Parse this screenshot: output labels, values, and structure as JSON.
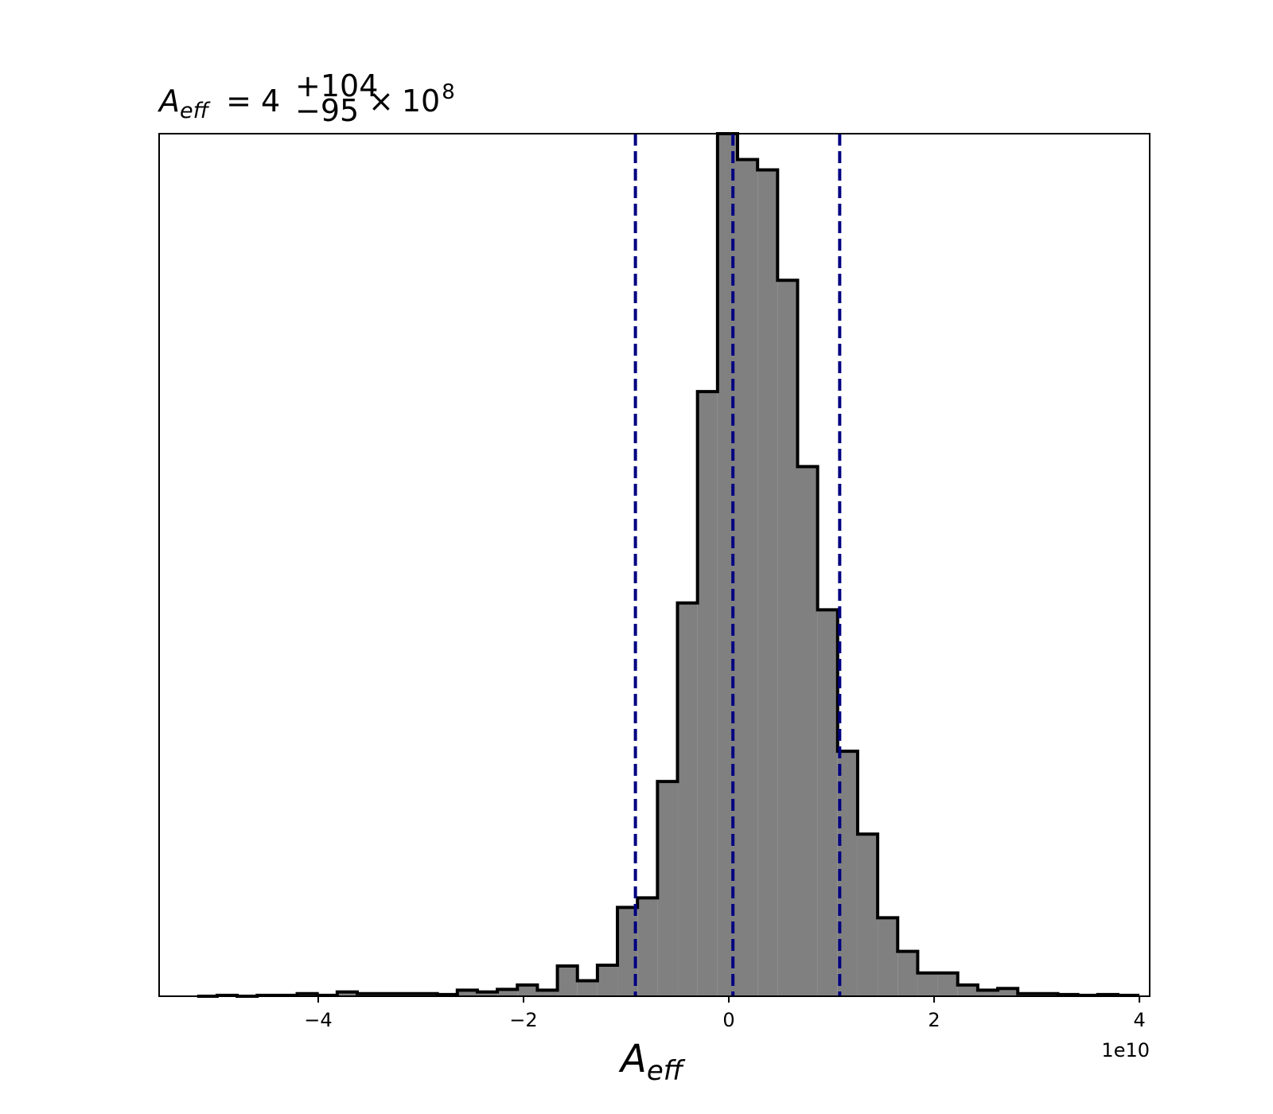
{
  "chart_data": {
    "type": "bar",
    "title": {
      "symbol": "A",
      "symbol_sub": "eff",
      "equals": "=",
      "median": "4",
      "upper": "+104",
      "lower": "−95",
      "times": "×",
      "base": "10",
      "exponent": "8"
    },
    "xlabel": {
      "symbol": "A",
      "sub": "eff"
    },
    "ylabel": "",
    "x_offset_label": "1e10",
    "xlim": [
      -5.55,
      4.1
    ],
    "ylim": [
      0,
      1
    ],
    "xticks": [
      {
        "value": -4,
        "label": "−4"
      },
      {
        "value": -2,
        "label": "−2"
      },
      {
        "value": 0,
        "label": "0"
      },
      {
        "value": 2,
        "label": "2"
      },
      {
        "value": 4,
        "label": "4"
      }
    ],
    "yticks_visible": false,
    "grid": false,
    "histogram": {
      "bin_edges": [
        -5.18,
        -4.985,
        -4.79,
        -4.595,
        -4.4,
        -4.205,
        -4.01,
        -3.815,
        -3.62,
        -3.425,
        -3.23,
        -3.035,
        -2.84,
        -2.645,
        -2.45,
        -2.255,
        -2.06,
        -1.865,
        -1.67,
        -1.475,
        -1.28,
        -1.085,
        -0.89,
        -0.695,
        -0.5,
        -0.305,
        -0.11,
        0.085,
        0.28,
        0.475,
        0.67,
        0.865,
        1.06,
        1.255,
        1.45,
        1.645,
        1.84,
        2.035,
        2.23,
        2.425,
        2.62,
        2.815,
        3.01,
        3.205,
        3.4,
        3.595,
        3.79,
        3.985
      ],
      "counts": [
        0.0,
        0.001,
        0.0,
        0.001,
        0.001,
        0.003,
        0.001,
        0.005,
        0.003,
        0.003,
        0.003,
        0.003,
        0.002,
        0.007,
        0.005,
        0.008,
        0.013,
        0.007,
        0.035,
        0.018,
        0.036,
        0.103,
        0.114,
        0.249,
        0.456,
        0.701,
        1.0,
        0.97,
        0.958,
        0.83,
        0.614,
        0.448,
        0.284,
        0.188,
        0.091,
        0.052,
        0.027,
        0.027,
        0.013,
        0.007,
        0.009,
        0.003,
        0.003,
        0.002,
        0.001,
        0.002,
        0.001
      ],
      "fill": "#808080",
      "edge": "#000000"
    },
    "vlines": [
      {
        "x": -0.91,
        "style": "dashed",
        "color": "#000080"
      },
      {
        "x": 0.04,
        "style": "dashed",
        "color": "#000080"
      },
      {
        "x": 1.08,
        "style": "dashed",
        "color": "#000080"
      }
    ]
  }
}
